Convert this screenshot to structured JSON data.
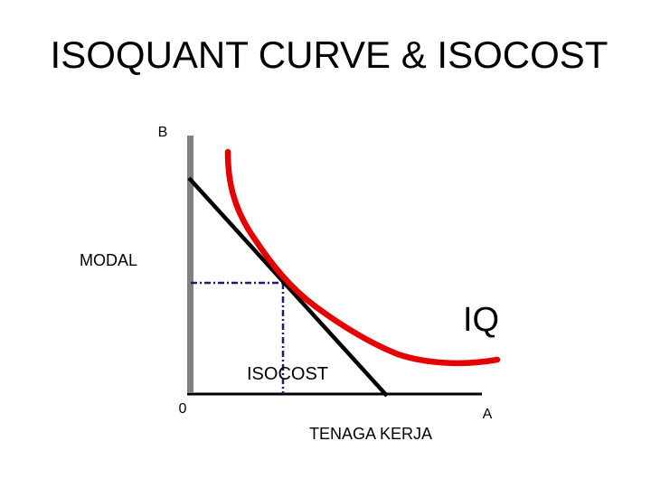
{
  "title": "ISOQUANT CURVE & ISOCOST",
  "labels": {
    "y_axis_letter": "B",
    "y_axis": "MODAL",
    "curve": "IQ",
    "line": "ISOCOST",
    "origin": "0",
    "x_axis_letter": "A",
    "x_axis": "TENAGA KERJA"
  }
}
